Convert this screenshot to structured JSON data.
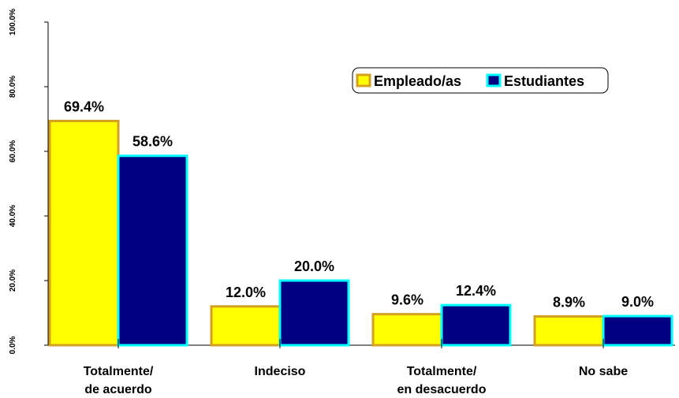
{
  "chart_data": {
    "type": "bar",
    "categories": [
      [
        "Totalmente/",
        "de acuerdo"
      ],
      [
        "Indeciso"
      ],
      [
        "Totalmente/",
        "en desacuerdo"
      ],
      [
        "No sabe"
      ]
    ],
    "series": [
      {
        "name": "Empleado/as",
        "color": "#ffff00",
        "border": "#d4a020",
        "values": [
          69.4,
          12.0,
          9.6,
          8.9
        ],
        "value_labels": [
          "69.4%",
          "12.0%",
          "9.6%",
          "8.9%"
        ]
      },
      {
        "name": "Estudiantes",
        "color": "#000080",
        "border": "#00ffff",
        "values": [
          58.6,
          20.0,
          12.4,
          9.0
        ],
        "value_labels": [
          "58.6%",
          "20.0%",
          "12.4%",
          "9.0%"
        ]
      }
    ],
    "ylim": [
      0,
      100
    ],
    "yticks": [
      {
        "value": 0,
        "label": "0.0%"
      },
      {
        "value": 20,
        "label": "20.0%"
      },
      {
        "value": 40,
        "label": "40.0%"
      },
      {
        "value": 60,
        "label": "60.0%"
      },
      {
        "value": 80,
        "label": "80.0%"
      },
      {
        "value": 100,
        "label": "100.0%"
      }
    ],
    "legend": "upper right"
  }
}
